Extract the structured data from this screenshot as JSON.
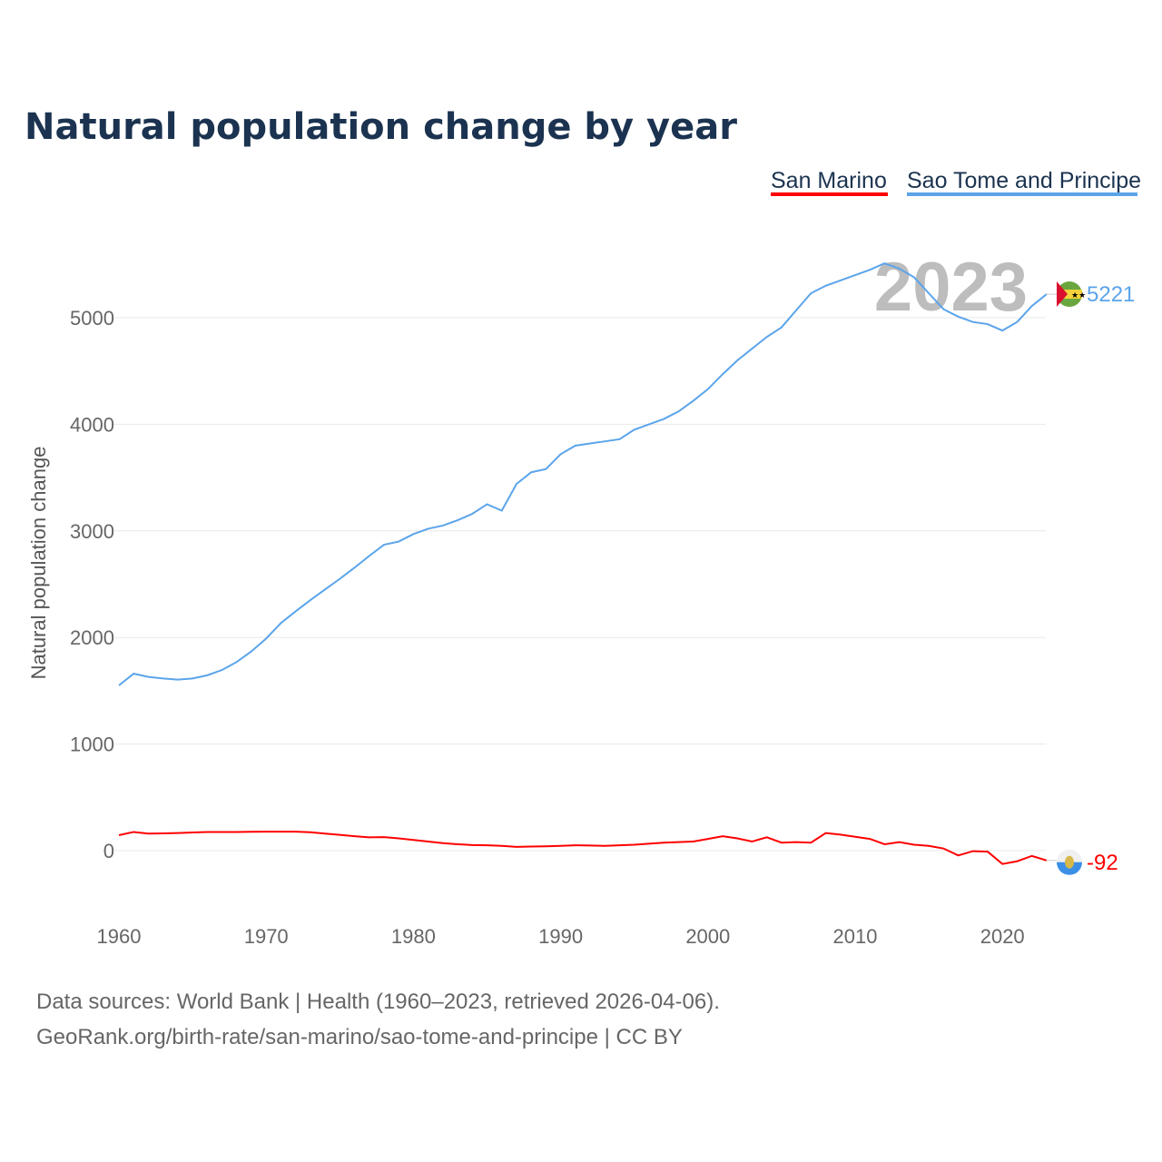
{
  "chart_data": {
    "type": "line",
    "title": "Natural population change by year",
    "xlabel": "",
    "ylabel": "Natural population change",
    "xlim": [
      1960,
      2023
    ],
    "ylim": [
      -600,
      5700
    ],
    "x_ticks": [
      1960,
      1970,
      1980,
      1990,
      2000,
      2010,
      2020
    ],
    "y_ticks": [
      0,
      1000,
      2000,
      3000,
      4000,
      5000
    ],
    "grid": true,
    "legend_position": "top-right",
    "year_watermark": "2023",
    "series": [
      {
        "name": "San Marino",
        "color": "#ff0000",
        "end_label": "-92",
        "x": [
          1960,
          1961,
          1962,
          1963,
          1964,
          1965,
          1966,
          1967,
          1968,
          1969,
          1970,
          1971,
          1972,
          1973,
          1974,
          1975,
          1976,
          1977,
          1978,
          1979,
          1980,
          1981,
          1982,
          1983,
          1984,
          1985,
          1986,
          1987,
          1988,
          1989,
          1990,
          1991,
          1992,
          1993,
          1994,
          1995,
          1996,
          1997,
          1998,
          1999,
          2000,
          2001,
          2002,
          2003,
          2004,
          2005,
          2006,
          2007,
          2008,
          2009,
          2010,
          2011,
          2012,
          2013,
          2014,
          2015,
          2016,
          2017,
          2018,
          2019,
          2020,
          2021,
          2022,
          2023
        ],
        "values": [
          145,
          175,
          160,
          162,
          165,
          170,
          175,
          175,
          175,
          177,
          178,
          178,
          178,
          172,
          160,
          148,
          135,
          125,
          127,
          115,
          100,
          85,
          70,
          60,
          52,
          50,
          45,
          35,
          38,
          40,
          45,
          50,
          48,
          45,
          50,
          55,
          65,
          75,
          80,
          85,
          110,
          135,
          115,
          85,
          125,
          75,
          80,
          75,
          165,
          150,
          130,
          110,
          60,
          80,
          55,
          45,
          20,
          -45,
          -5,
          -10,
          -125,
          -100,
          -50,
          -92
        ]
      },
      {
        "name": "Sao Tome and Principe",
        "color": "#5ba4ea",
        "end_label": "5221",
        "x": [
          1960,
          1961,
          1962,
          1963,
          1964,
          1965,
          1966,
          1967,
          1968,
          1969,
          1970,
          1971,
          1972,
          1973,
          1974,
          1975,
          1976,
          1977,
          1978,
          1979,
          1980,
          1981,
          1982,
          1983,
          1984,
          1985,
          1986,
          1987,
          1988,
          1989,
          1990,
          1991,
          1992,
          1993,
          1994,
          1995,
          1996,
          1997,
          1998,
          1999,
          2000,
          2001,
          2002,
          2003,
          2004,
          2005,
          2006,
          2007,
          2008,
          2009,
          2010,
          2011,
          2012,
          2013,
          2014,
          2015,
          2016,
          2017,
          2018,
          2019,
          2020,
          2021,
          2022,
          2023
        ],
        "values": [
          1550,
          1660,
          1630,
          1615,
          1605,
          1615,
          1645,
          1695,
          1770,
          1870,
          1990,
          2135,
          2245,
          2350,
          2450,
          2550,
          2655,
          2765,
          2870,
          2900,
          2970,
          3020,
          3050,
          3100,
          3160,
          3250,
          3190,
          3440,
          3550,
          3580,
          3720,
          3800,
          3820,
          3840,
          3860,
          3950,
          4000,
          4050,
          4120,
          4220,
          4330,
          4470,
          4600,
          4710,
          4820,
          4910,
          5070,
          5230,
          5300,
          5350,
          5400,
          5450,
          5510,
          5460,
          5380,
          5230,
          5080,
          5010,
          4960,
          4940,
          4880,
          4960,
          5110,
          5221
        ]
      }
    ]
  },
  "footer": {
    "line1": "Data sources: World Bank | Health (1960–2023, retrieved 2026-04-06).",
    "line2": "GeoRank.org/birth-rate/san-marino/sao-tome-and-principe | CC BY"
  }
}
